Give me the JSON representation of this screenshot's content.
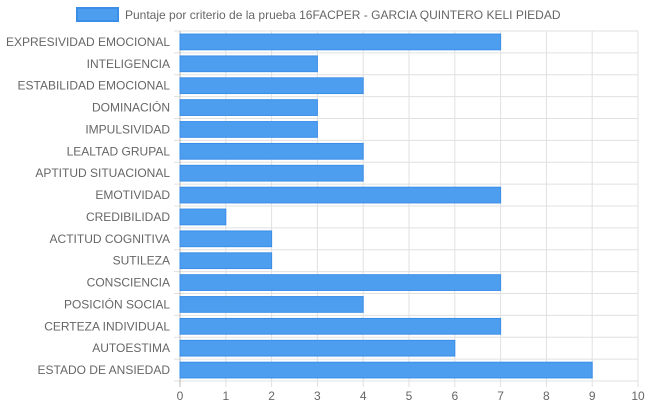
{
  "chart_data": {
    "type": "bar",
    "orientation": "horizontal",
    "title": "",
    "xlabel": "",
    "ylabel": "",
    "categories": [
      "EXPRESIVIDAD EMOCIONAL",
      "INTELIGENCIA",
      "ESTABILIDAD EMOCIONAL",
      "DOMINACIÓN",
      "IMPULSIVIDAD",
      "LEALTAD GRUPAL",
      "APTITUD SITUACIONAL",
      "EMOTIVIDAD",
      "CREDIBILIDAD",
      "ACTITUD COGNITIVA",
      "SUTILEZA",
      "CONSCIENCIA",
      "POSICIÓN SOCIAL",
      "CERTEZA INDIVIDUAL",
      "AUTOESTIMA",
      "ESTADO DE ANSIEDAD"
    ],
    "series": [
      {
        "name": "Puntaje por criterio de la prueba 16FACPER - GARCIA QUINTERO KELI PIEDAD",
        "values": [
          7,
          3,
          4,
          3,
          3,
          4,
          4,
          7,
          1,
          2,
          2,
          7,
          4,
          7,
          6,
          9
        ],
        "color": "#4e9ef0",
        "border_color": "#3a8ee8"
      }
    ],
    "xlim": [
      0,
      10
    ],
    "xticks": [
      "0",
      "1",
      "2",
      "3",
      "4",
      "5",
      "6",
      "7",
      "8",
      "9",
      "10"
    ],
    "grid": true,
    "legend_position": "top-center"
  }
}
